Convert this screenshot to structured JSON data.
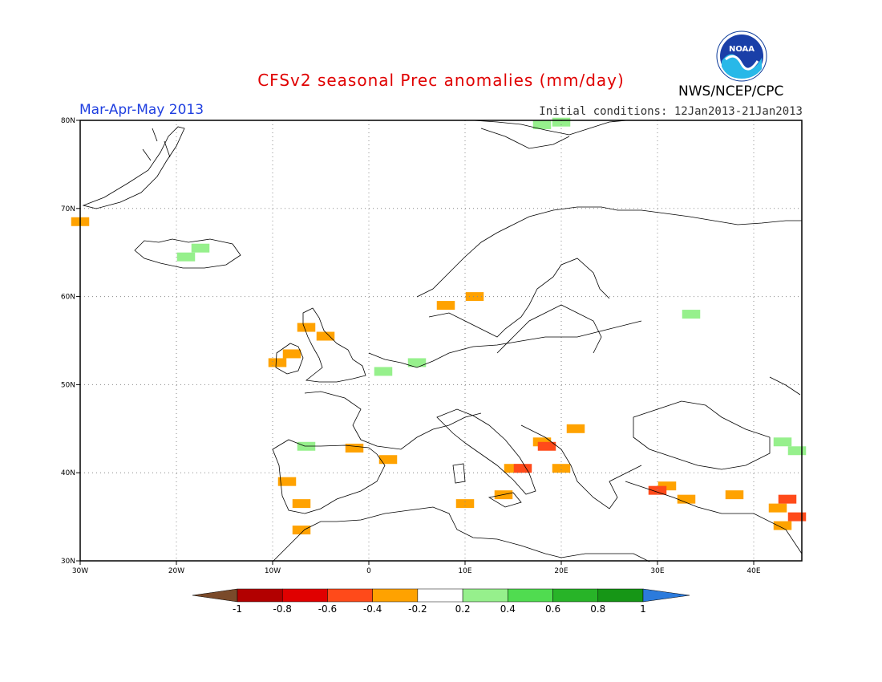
{
  "title": "CFSv2 seasonal Prec anomalies (mm/day)",
  "period": "Mar-Apr-May 2013",
  "initial_conditions": "Initial conditions: 12Jan2013-21Jan2013",
  "agency": "NWS/NCEP/CPC",
  "logo_text": "NOAA",
  "map": {
    "lon_range": [
      -30,
      45
    ],
    "lat_range": [
      30,
      80
    ],
    "lon_ticks": [
      "30W",
      "20W",
      "10W",
      "0",
      "10E",
      "20E",
      "30E",
      "40E"
    ],
    "lat_ticks": [
      "30N",
      "40N",
      "50N",
      "60N",
      "70N",
      "80N"
    ],
    "grid": "dotted every 10 degrees"
  },
  "colorbar": {
    "labels": [
      "-1",
      "-0.8",
      "-0.6",
      "-0.4",
      "-0.2",
      "0.2",
      "0.4",
      "0.6",
      "0.8",
      "1"
    ],
    "colors": [
      "#7a4a2a",
      "#b20000",
      "#e00000",
      "#ff4a1a",
      "#ffa200",
      "#ffffff",
      "#96f08c",
      "#50dc50",
      "#28b428",
      "#169616",
      "#2c7bdc"
    ]
  },
  "anomaly_cells": [
    {
      "lon": -30,
      "lat": 68.5,
      "class": "orange"
    },
    {
      "lon": -19,
      "lat": 64.5,
      "class": "lightgreen"
    },
    {
      "lon": -17.5,
      "lat": 65.5,
      "class": "lightgreen"
    },
    {
      "lon": -9.5,
      "lat": 52.5,
      "class": "orange"
    },
    {
      "lon": -8,
      "lat": 53.5,
      "class": "orange"
    },
    {
      "lon": -6.5,
      "lat": 56.5,
      "class": "orange"
    },
    {
      "lon": -4.5,
      "lat": 55.5,
      "class": "orange"
    },
    {
      "lon": -6.5,
      "lat": 43,
      "class": "lightgreen"
    },
    {
      "lon": -1.5,
      "lat": 42.8,
      "class": "orange"
    },
    {
      "lon": 2,
      "lat": 41.5,
      "class": "orange"
    },
    {
      "lon": 1.5,
      "lat": 51.5,
      "class": "lightgreen"
    },
    {
      "lon": 5,
      "lat": 52.5,
      "class": "lightgreen"
    },
    {
      "lon": -8.5,
      "lat": 39,
      "class": "orange"
    },
    {
      "lon": -7,
      "lat": 36.5,
      "class": "orange"
    },
    {
      "lon": -7,
      "lat": 33.5,
      "class": "orange"
    },
    {
      "lon": 8,
      "lat": 59,
      "class": "orange"
    },
    {
      "lon": 11,
      "lat": 60,
      "class": "orange"
    },
    {
      "lon": 10,
      "lat": 36.5,
      "class": "orange"
    },
    {
      "lon": 14,
      "lat": 37.5,
      "class": "orange"
    },
    {
      "lon": 15,
      "lat": 40.5,
      "class": "orange"
    },
    {
      "lon": 16,
      "lat": 40.5,
      "class": "red"
    },
    {
      "lon": 18,
      "lat": 43.5,
      "class": "orange"
    },
    {
      "lon": 18.5,
      "lat": 43,
      "class": "red"
    },
    {
      "lon": 20,
      "lat": 40.5,
      "class": "orange"
    },
    {
      "lon": 21.5,
      "lat": 45,
      "class": "orange"
    },
    {
      "lon": 33.5,
      "lat": 58,
      "class": "lightgreen"
    },
    {
      "lon": 31,
      "lat": 38.5,
      "class": "orange"
    },
    {
      "lon": 30,
      "lat": 38,
      "class": "red"
    },
    {
      "lon": 33,
      "lat": 37,
      "class": "orange"
    },
    {
      "lon": 38,
      "lat": 37.5,
      "class": "orange"
    },
    {
      "lon": 42.5,
      "lat": 36,
      "class": "orange"
    },
    {
      "lon": 43.5,
      "lat": 37,
      "class": "red"
    },
    {
      "lon": 44.5,
      "lat": 35,
      "class": "red"
    },
    {
      "lon": 43,
      "lat": 34,
      "class": "orange"
    },
    {
      "lon": 43,
      "lat": 43.5,
      "class": "lightgreen"
    },
    {
      "lon": 44.5,
      "lat": 42.5,
      "class": "lightgreen"
    },
    {
      "lon": 18,
      "lat": 79.5,
      "class": "lightgreen"
    },
    {
      "lon": 20,
      "lat": 79.8,
      "class": "lightgreen"
    }
  ]
}
